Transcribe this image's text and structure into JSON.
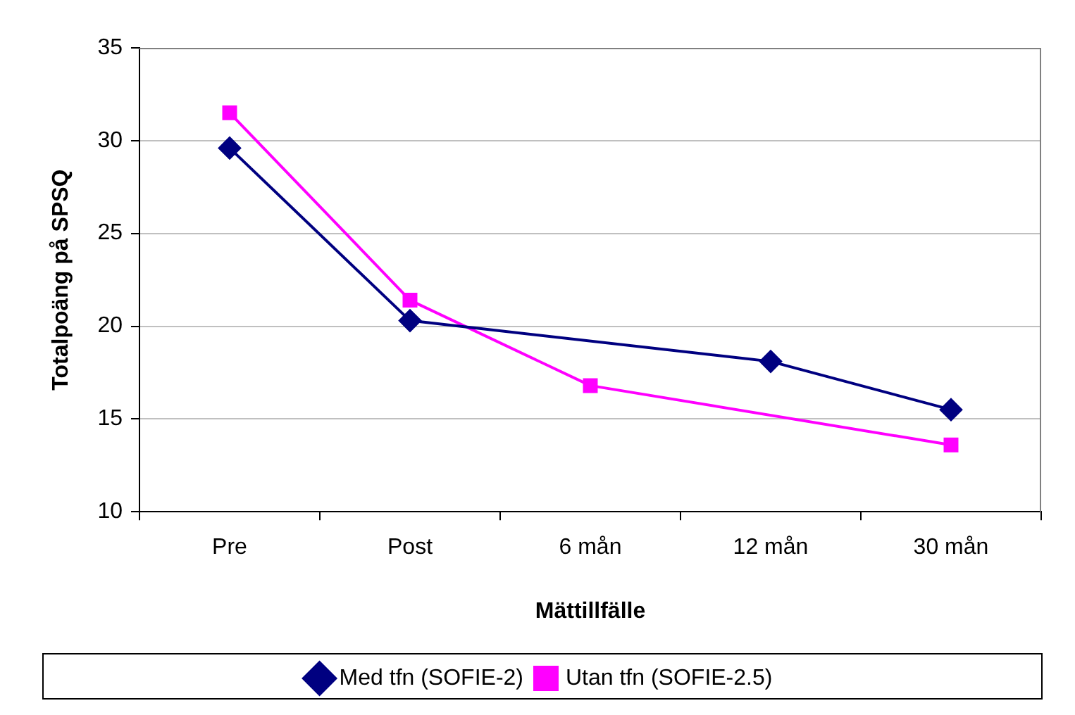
{
  "chart_data": {
    "type": "line",
    "xlabel": "Mättillfälle",
    "ylabel": "Totalpoäng på SPSQ",
    "categories": [
      "Pre",
      "Post",
      "6 mån",
      "12 mån",
      "30 mån"
    ],
    "series": [
      {
        "name": "Med tfn (SOFIE-2)",
        "color": "#000080",
        "marker": "diamond",
        "values": [
          29.6,
          20.3,
          null,
          18.1,
          15.5
        ]
      },
      {
        "name": "Utan tfn (SOFIE-2.5)",
        "color": "#ff00ff",
        "marker": "square",
        "values": [
          31.5,
          21.4,
          16.8,
          null,
          13.6
        ]
      }
    ],
    "ylim": [
      10,
      35
    ],
    "yticks": [
      10,
      15,
      20,
      25,
      30,
      35
    ],
    "grid": "y",
    "legend": "bottom"
  }
}
